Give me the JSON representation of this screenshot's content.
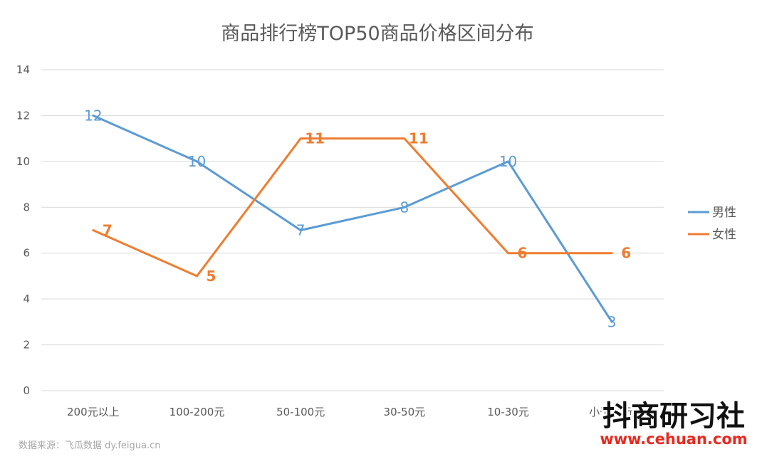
{
  "chart_data": {
    "type": "line",
    "title": "商品排行榜TOP50商品价格区间分布",
    "categories": [
      "200元以上",
      "100-200元",
      "50-100元",
      "30-50元",
      "10-30元",
      "小于10元"
    ],
    "ylim": [
      0,
      14
    ],
    "yticks": [
      0,
      2,
      4,
      6,
      8,
      10,
      12,
      14
    ],
    "grid": true,
    "legend_position": "right",
    "data_labels": true,
    "series": [
      {
        "name": "男性",
        "color": "#5b9bd5",
        "values": [
          12,
          10,
          7,
          8,
          10,
          3
        ]
      },
      {
        "name": "女性",
        "color": "#ed7d31",
        "values": [
          7,
          5,
          11,
          11,
          6,
          6
        ]
      }
    ]
  },
  "source": "数据来源：飞瓜数据 dy.feigua.cn",
  "watermark": {
    "name": "抖商研习社",
    "url": "www.cehuan.com"
  }
}
